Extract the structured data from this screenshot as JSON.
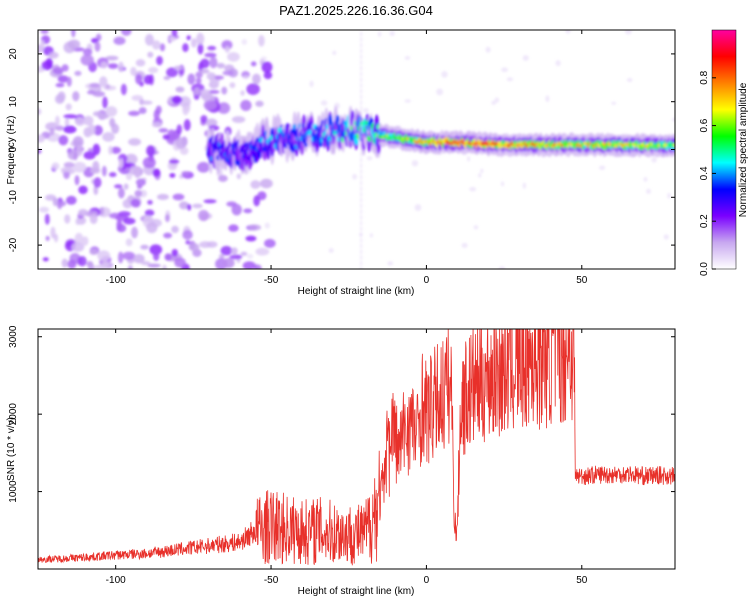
{
  "chart_data": [
    {
      "type": "heatmap",
      "title": "PAZ1.2025.226.16.36.G04",
      "xlabel": "Height of straight line (km)",
      "ylabel": "Frequency (Hz)",
      "xlim": [
        -125,
        80
      ],
      "ylim": [
        -25,
        25
      ],
      "x_ticks": [
        -100,
        -50,
        0,
        50
      ],
      "y_ticks": [
        -20,
        -10,
        0,
        10,
        20
      ],
      "colorbar": {
        "label": "Normalized spectral amplitude",
        "range": [
          0,
          1
        ],
        "ticks": [
          0.0,
          0.2,
          0.4,
          0.6,
          0.8
        ],
        "colormap": [
          "#ffffff",
          "#c8a8f0",
          "#7a00ff",
          "#0000ff",
          "#00ffff",
          "#00ff00",
          "#ffff00",
          "#ff8000",
          "#ff0000",
          "#ff00a0"
        ]
      },
      "ridge": [
        {
          "x": -70,
          "freq": 0.0,
          "amp": 0.35
        },
        {
          "x": -60,
          "freq": -1.0,
          "amp": 0.3
        },
        {
          "x": -50,
          "freq": 2.0,
          "amp": 0.4
        },
        {
          "x": -40,
          "freq": 3.0,
          "amp": 0.35
        },
        {
          "x": -25,
          "freq": 4.5,
          "amp": 0.45
        },
        {
          "x": -15,
          "freq": 3.0,
          "amp": 0.5
        },
        {
          "x": 0,
          "freq": 1.5,
          "amp": 0.7
        },
        {
          "x": 10,
          "freq": 1.5,
          "amp": 0.8
        },
        {
          "x": 25,
          "freq": 1.0,
          "amp": 0.75
        },
        {
          "x": 50,
          "freq": 1.0,
          "amp": 0.65
        },
        {
          "x": 80,
          "freq": 0.8,
          "amp": 0.6
        }
      ],
      "noise_region_x": [
        -125,
        -60
      ]
    },
    {
      "type": "line",
      "xlabel": "Height of straight line (km)",
      "ylabel": "SNR (10 * v/v)",
      "xlim": [
        -125,
        80
      ],
      "ylim": [
        0,
        3100
      ],
      "x_ticks": [
        -100,
        -50,
        0,
        50
      ],
      "y_ticks": [
        1000,
        2000,
        3000
      ],
      "color": "#e8302a",
      "series": [
        {
          "x": [
            -125,
            -110,
            -100,
            -90,
            -80,
            -70,
            -60,
            -55,
            -50,
            -45,
            -40,
            -35,
            -30,
            -25,
            -20,
            -18,
            -15,
            -13,
            -12.5,
            -12,
            -11,
            -10,
            -9,
            -7,
            -5,
            -3,
            -2,
            -1,
            0,
            2,
            4,
            6,
            8,
            9,
            9.5,
            10,
            11,
            12,
            14,
            16,
            20,
            25,
            30,
            35,
            40,
            45,
            47,
            47.5,
            48,
            50,
            55,
            60,
            65,
            70,
            75,
            80
          ],
          "y": [
            120,
            150,
            180,
            200,
            250,
            300,
            350,
            500,
            550,
            520,
            480,
            500,
            470,
            450,
            450,
            600,
            900,
            1200,
            2500,
            1400,
            1900,
            1700,
            1500,
            1800,
            1900,
            1700,
            2000,
            2200,
            2000,
            2100,
            2200,
            2300,
            2400,
            700,
            450,
            600,
            2100,
            2200,
            2300,
            2400,
            2500,
            2600,
            2700,
            2750,
            2800,
            2850,
            2850,
            2800,
            1200,
            1200,
            1220,
            1220,
            1230,
            1200,
            1210,
            1200
          ]
        }
      ]
    }
  ]
}
